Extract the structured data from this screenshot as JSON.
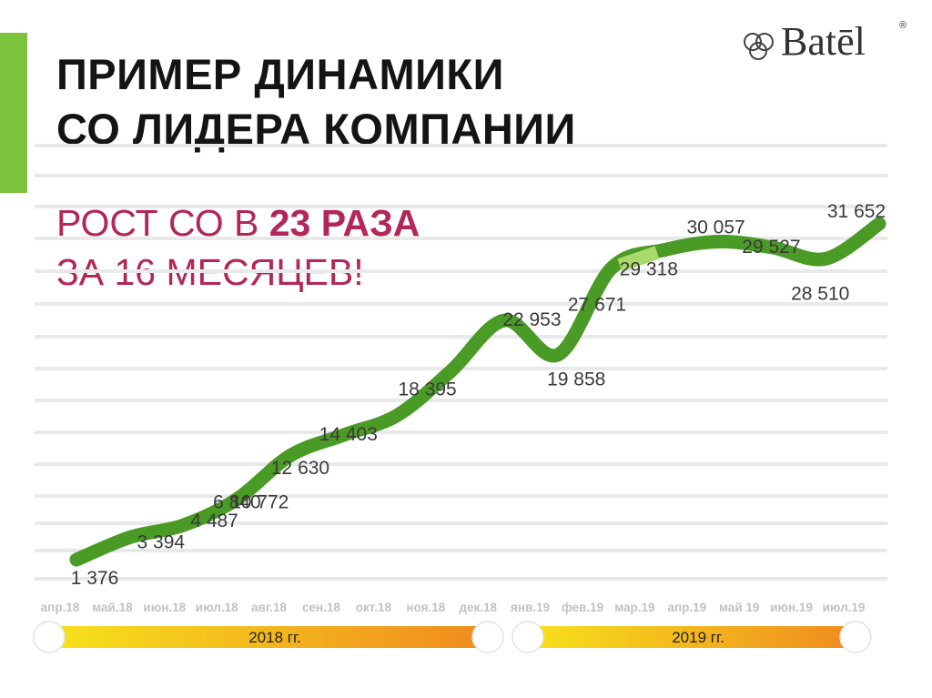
{
  "header": {
    "title_line1": "ПРИМЕР ДИНАМИКИ",
    "title_line2": "СО ЛИДЕРА КОМПАНИИ",
    "subtitle_part1": "РОСТ СО В ",
    "subtitle_bold": "23 РАЗА",
    "subtitle_line2": "ЗА 16 МЕСЯЦЕВ!"
  },
  "logo": {
    "text": "Batēl",
    "mark": "®"
  },
  "colors": {
    "accent": "#7cc23a",
    "line": "#4a9a26",
    "line_highlight": "#a8d96a",
    "subtitle": "#b3265c",
    "gradient_start": "#f6e21c",
    "gradient_end": "#f08a1e"
  },
  "chart_data": {
    "type": "line",
    "categories": [
      "апр.18",
      "май.18",
      "июн.18",
      "июл.18",
      "авг.18",
      "сен.18",
      "окт.18",
      "ноя.18",
      "дек.18",
      "янв.19",
      "фев.19",
      "мар.19",
      "апр.19",
      "май 19",
      "июн.19",
      "июл.19"
    ],
    "values": [
      1376,
      3394,
      4487,
      6840,
      10772,
      12630,
      14403,
      18395,
      22953,
      19858,
      27671,
      29318,
      30057,
      29527,
      28510,
      31652
    ],
    "data_labels": [
      "1 376",
      "3 394",
      "4 487",
      "6 840",
      "10 772",
      "12 630",
      "14 403",
      "18 395",
      "22 953",
      "19 858",
      "27 671",
      "29 318",
      "30 057",
      "29 527",
      "28 510",
      "31 652"
    ],
    "grid": true,
    "year_bands": [
      {
        "label": "2018 гг.",
        "from": "апр.18",
        "to": "дек.18"
      },
      {
        "label": "2019 гг.",
        "from": "янв.19",
        "to": "июл.19"
      }
    ]
  }
}
